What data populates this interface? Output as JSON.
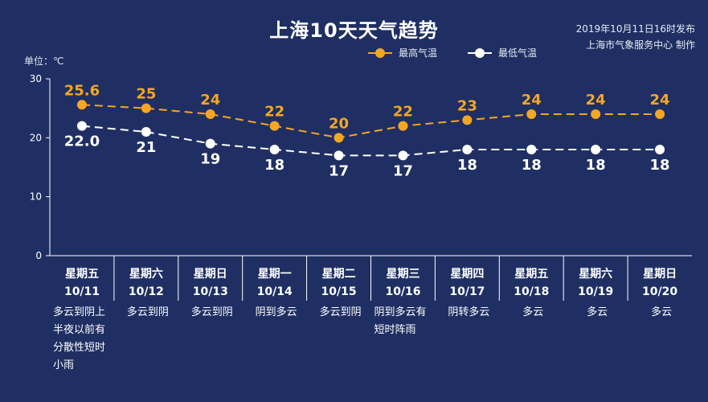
{
  "title": "上海10天天气趋势",
  "issued": "2019年10月11日16时发布",
  "issuer": "上海市气象服务中心 制作",
  "unit_label": "单位：℃",
  "colors": {
    "high": "#f5a623",
    "low": "#ffffff",
    "background": "#1f2f63"
  },
  "chart_data": {
    "type": "line",
    "x": [
      "10/11",
      "10/12",
      "10/13",
      "10/14",
      "10/15",
      "10/16",
      "10/17",
      "10/18",
      "10/19",
      "10/20"
    ],
    "weekdays": [
      "星期五",
      "星期六",
      "星期日",
      "星期一",
      "星期二",
      "星期三",
      "星期四",
      "星期五",
      "星期六",
      "星期日"
    ],
    "weather": [
      "多云到阴上半夜以前有分散性短时小雨",
      "多云到阴",
      "多云到阴",
      "阴到多云",
      "多云到阴",
      "阴到多云有短时阵雨",
      "阴转多云",
      "多云",
      "多云",
      "多云"
    ],
    "series": [
      {
        "name": "最高气温",
        "values": [
          25.6,
          25,
          24,
          22,
          20,
          22,
          23,
          24,
          24,
          24
        ],
        "labels": [
          "25.6",
          "25",
          "24",
          "22",
          "20",
          "22",
          "23",
          "24",
          "24",
          "24"
        ]
      },
      {
        "name": "最低气温",
        "values": [
          22.0,
          21,
          19,
          18,
          17,
          17,
          18,
          18,
          18,
          18
        ],
        "labels": [
          "22.0",
          "21",
          "19",
          "18",
          "17",
          "17",
          "18",
          "18",
          "18",
          "18"
        ]
      }
    ],
    "yticks": [
      "0",
      "10",
      "20",
      "30"
    ],
    "ylim": [
      0,
      30
    ],
    "legend_position": "top-right",
    "grid": false
  }
}
